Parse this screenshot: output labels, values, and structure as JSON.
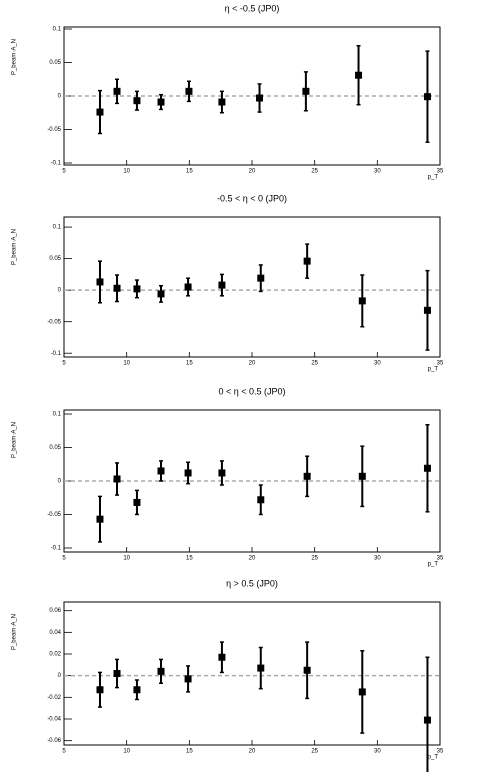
{
  "chart_data": [
    {
      "type": "scatter",
      "title": "η < -0.5 (JP0)",
      "x_label": "p_T",
      "y_label": "P_beam·A_N",
      "color": "#000000",
      "x": [
        7.87,
        9.23,
        10.82,
        12.74,
        14.97,
        17.6,
        20.6,
        24.3,
        28.5,
        34.0
      ],
      "values": [
        -0.024,
        0.007,
        -0.007,
        -0.009,
        0.007,
        -0.009,
        -0.003,
        0.007,
        0.031,
        -0.001
      ],
      "errors": [
        0.032,
        0.018,
        0.014,
        0.011,
        0.015,
        0.016,
        0.021,
        0.029,
        0.044,
        0.068
      ],
      "xlim": [
        5,
        35
      ],
      "xticks": [
        5,
        10,
        15,
        20,
        25,
        30,
        35
      ],
      "ylim": [
        -0.103,
        0.103
      ],
      "yticks": [
        -0.1,
        -0.05,
        0,
        0.05,
        0.1
      ]
    },
    {
      "type": "scatter",
      "title": "-0.5 < η < 0 (JP0)",
      "x_label": "p_T",
      "y_label": "P_beam·A_N",
      "color": "#000000",
      "x": [
        7.87,
        9.23,
        10.82,
        12.74,
        14.9,
        17.6,
        20.7,
        24.4,
        28.8,
        34.0
      ],
      "values": [
        0.013,
        0.003,
        0.002,
        -0.006,
        0.005,
        0.008,
        0.019,
        0.046,
        -0.017,
        -0.032
      ],
      "errors": [
        0.033,
        0.021,
        0.014,
        0.013,
        0.014,
        0.017,
        0.021,
        0.027,
        0.041,
        0.063
      ],
      "xlim": [
        5,
        35
      ],
      "xticks": [
        5,
        10,
        15,
        20,
        25,
        30,
        35
      ],
      "ylim": [
        -0.106,
        0.116
      ],
      "yticks": [
        -0.1,
        -0.05,
        0,
        0.05,
        0.1
      ]
    },
    {
      "type": "scatter",
      "title": "0 < η < 0.5 (JP0)",
      "x_label": "p_T",
      "y_label": "P_beam·A_N",
      "color": "#000000",
      "x": [
        7.87,
        9.23,
        10.82,
        12.74,
        14.9,
        17.6,
        20.7,
        24.4,
        28.8,
        34.0
      ],
      "values": [
        -0.057,
        0.003,
        -0.032,
        0.015,
        0.012,
        0.012,
        -0.028,
        0.007,
        0.007,
        0.019
      ],
      "errors": [
        0.034,
        0.024,
        0.018,
        0.015,
        0.016,
        0.018,
        0.022,
        0.03,
        0.045,
        0.065
      ],
      "xlim": [
        5,
        35
      ],
      "xticks": [
        5,
        10,
        15,
        20,
        25,
        30,
        35
      ],
      "ylim": [
        -0.106,
        0.106
      ],
      "yticks": [
        -0.1,
        -0.05,
        0,
        0.05,
        0.1
      ]
    },
    {
      "type": "scatter",
      "title": "η > 0.5 (JP0)",
      "x_label": "p_T",
      "y_label": "P_beam·A_N",
      "color": "#000000",
      "x": [
        7.87,
        9.23,
        10.82,
        12.74,
        14.9,
        17.6,
        20.7,
        24.4,
        28.8,
        34.0
      ],
      "values": [
        -0.013,
        0.002,
        -0.013,
        0.004,
        -0.003,
        0.017,
        0.007,
        0.005,
        -0.015,
        -0.041
      ],
      "errors": [
        0.016,
        0.013,
        0.009,
        0.011,
        0.012,
        0.014,
        0.019,
        0.026,
        0.038,
        0.058
      ],
      "xlim": [
        5,
        35
      ],
      "xticks": [
        5,
        10,
        15,
        20,
        25,
        30,
        35
      ],
      "ylim": [
        -0.064,
        0.068
      ],
      "yticks": [
        -0.06,
        -0.04,
        -0.02,
        0,
        0.02,
        0.04,
        0.06
      ]
    }
  ]
}
